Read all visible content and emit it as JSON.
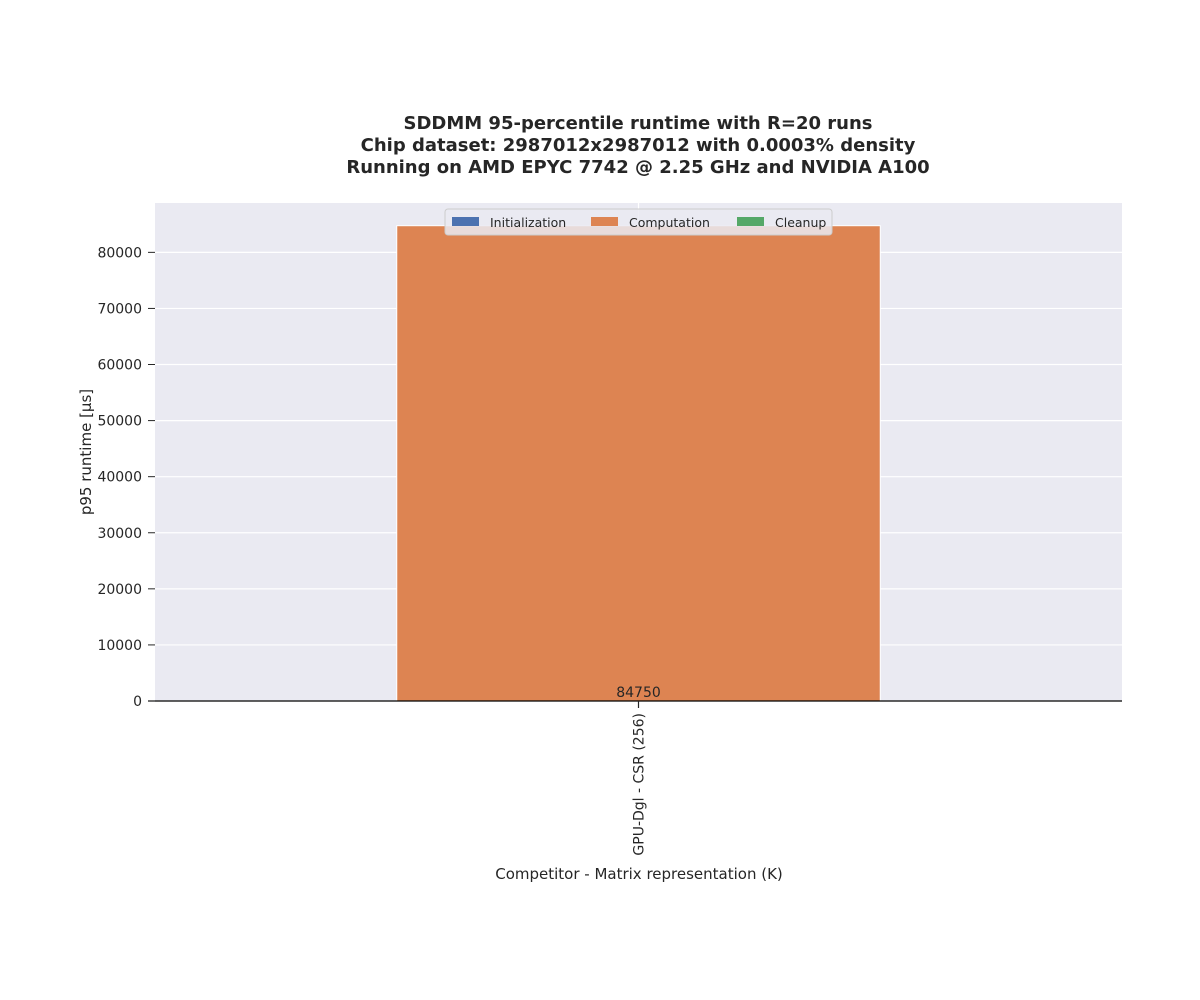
{
  "chart_data": {
    "type": "bar",
    "stacked": true,
    "title_lines": [
      "SDDMM 95-percentile runtime with R=20 runs",
      "Chip dataset: 2987012x2987012 with 0.0003% density",
      "Running on AMD EPYC 7742 @ 2.25 GHz and NVIDIA A100"
    ],
    "xlabel": "Competitor - Matrix representation (K)",
    "ylabel": "p95 runtime [µs]",
    "categories": [
      "GPU-Dgl - CSR (256)"
    ],
    "series": [
      {
        "name": "Initialization",
        "color": "#4c72b0",
        "values": [
          0
        ]
      },
      {
        "name": "Computation",
        "color": "#dd8452",
        "values": [
          84750
        ]
      },
      {
        "name": "Cleanup",
        "color": "#55a868",
        "values": [
          0
        ]
      }
    ],
    "data_labels": [
      "84750"
    ],
    "ylim": [
      0,
      88800
    ],
    "yticks": [
      0,
      10000,
      20000,
      30000,
      40000,
      50000,
      60000,
      70000,
      80000
    ],
    "grid": true,
    "legend_position": "top-center"
  }
}
